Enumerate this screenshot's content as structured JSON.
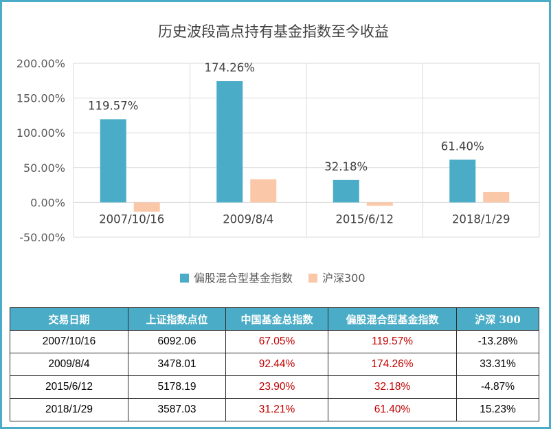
{
  "chart_data": {
    "type": "bar",
    "title": "历史波段高点持有基金指数至今收益",
    "categories": [
      "2007/10/16",
      "2009/8/4",
      "2015/6/12",
      "2018/1/29"
    ],
    "series": [
      {
        "name": "偏股混合型基金指数",
        "color": "#4aacc6",
        "values": [
          119.57,
          174.26,
          32.18,
          61.4
        ],
        "labels": [
          "119.57%",
          "174.26%",
          "32.18%",
          "61.40%"
        ]
      },
      {
        "name": "沪深300",
        "color": "#fac8a8",
        "values": [
          -13.28,
          33.31,
          -4.87,
          15.23
        ],
        "labels": []
      }
    ],
    "ylim": [
      -50,
      200
    ],
    "yticks": [
      -50,
      0,
      50,
      100,
      150,
      200
    ],
    "ytick_labels": [
      "-50.00%",
      "0.00%",
      "50.00%",
      "100.00%",
      "150.00%",
      "200.00%"
    ],
    "grid": true,
    "legend_position": "bottom"
  },
  "table": {
    "headers": [
      "交易日期",
      "上证指数点位",
      "中国基金总指数",
      "偏股混合型基金指数",
      "沪深 300"
    ],
    "rows": [
      [
        "2007/10/16",
        "6092.06",
        "67.05%",
        "119.57%",
        "-13.28%"
      ],
      [
        "2009/8/4",
        "3478.01",
        "92.44%",
        "174.26%",
        "33.31%"
      ],
      [
        "2015/6/12",
        "5178.19",
        "23.90%",
        "32.18%",
        "-4.87%"
      ],
      [
        "2018/1/29",
        "3587.03",
        "31.21%",
        "61.40%",
        "15.23%"
      ]
    ]
  }
}
